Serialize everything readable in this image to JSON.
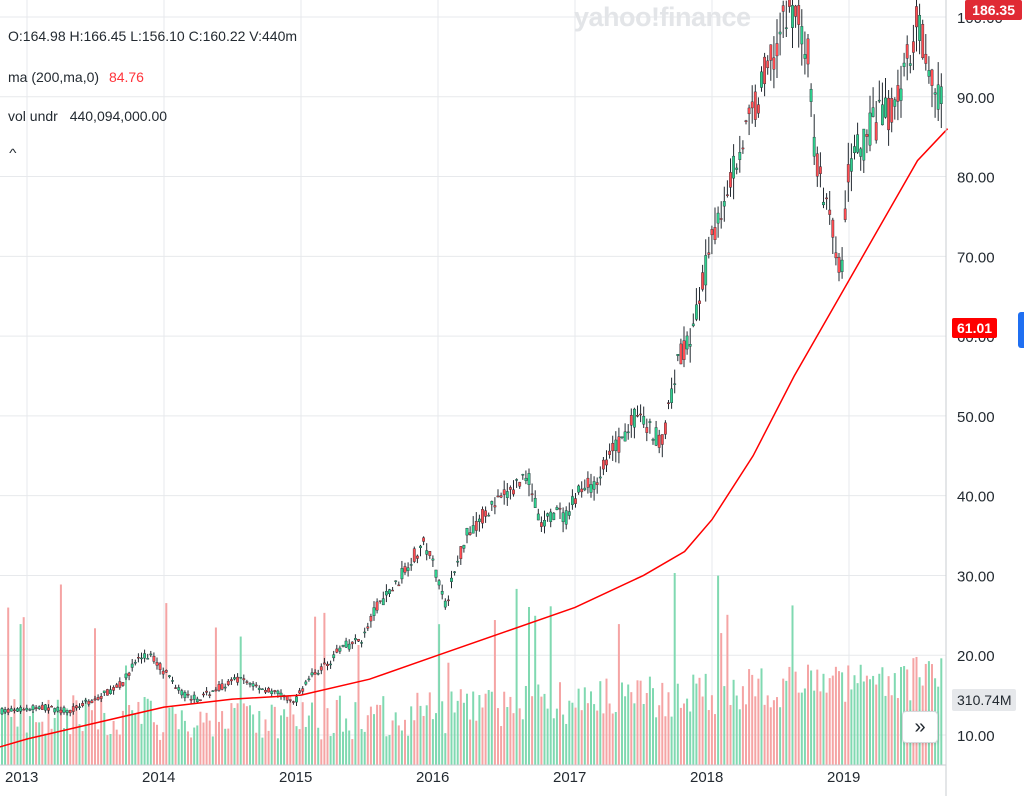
{
  "header": {
    "ohlcv": "O:164.98   H:166.45   L:156.10   C:160.22   V:440m",
    "ma_label": "ma (200,ma,0)",
    "ma_value": "84.76",
    "vol_label": "vol undr",
    "vol_value": "440,094,000.00",
    "collapse_icon": "chevron-up-icon"
  },
  "logo": "yahoo!finance",
  "price_tag": "186.35",
  "ma_tag": "61.01",
  "volume_tag": "310.74M",
  "forward_button_icon": "double-chevron-right-icon",
  "colors": {
    "up": "#2fcf8e",
    "down": "#ff4d52",
    "ma": "#ff0000",
    "grid": "#e7e9ec",
    "price_tag_bg": "#e02a34",
    "volume_up": "#80d9b1",
    "volume_down": "#f5a4a4"
  },
  "chart_data": {
    "type": "candlestick",
    "title": "",
    "xlabel": "",
    "ylabel": "",
    "ylim": [
      7,
      103
    ],
    "yticks": [
      "10.00",
      "20.00",
      "30.00",
      "40.00",
      "50.00",
      "60.00",
      "70.00",
      "80.00",
      "90.00",
      "100.00"
    ],
    "xticks": [
      "2013",
      "2014",
      "2015",
      "2016",
      "2017",
      "2018",
      "2019"
    ],
    "grid": true,
    "price_series": {
      "name": "price",
      "x": [
        2012.9,
        2013.1,
        2013.3,
        2013.5,
        2013.7,
        2013.8,
        2013.9,
        2014.0,
        2014.15,
        2014.25,
        2014.4,
        2014.55,
        2014.7,
        2014.85,
        2014.95,
        2015.05,
        2015.2,
        2015.3,
        2015.45,
        2015.55,
        2015.7,
        2015.8,
        2015.9,
        2016.0,
        2016.05,
        2016.1,
        2016.2,
        2016.35,
        2016.5,
        2016.65,
        2016.75,
        2016.85,
        2016.95,
        2017.0,
        2017.15,
        2017.3,
        2017.45,
        2017.55,
        2017.65,
        2017.75,
        2017.85,
        2017.95,
        2018.05,
        2018.15,
        2018.3,
        2018.45,
        2018.6,
        2018.7,
        2018.75,
        2018.85,
        2018.95,
        2019.0,
        2019.1,
        2019.2,
        2019.3,
        2019.4,
        2019.5,
        2019.6,
        2019.7
      ],
      "values": [
        13,
        13.5,
        13,
        14.5,
        16.5,
        19.5,
        20,
        18,
        15,
        14.5,
        16,
        17,
        16,
        15,
        14,
        17,
        19,
        21,
        22,
        26,
        29,
        32,
        34,
        30,
        26,
        29,
        35,
        38,
        40,
        43,
        36,
        38,
        37,
        40,
        42,
        46,
        50,
        48,
        47,
        57,
        60,
        68,
        75,
        81,
        88,
        96,
        102,
        95,
        83,
        75,
        68,
        82,
        84,
        87,
        88,
        92,
        101,
        92,
        88
      ]
    },
    "ma_series": {
      "name": "ma (200,ma,0)",
      "x": [
        2012.7,
        2013.0,
        2013.5,
        2014.0,
        2014.5,
        2015.0,
        2015.5,
        2016.0,
        2016.5,
        2017.0,
        2017.5,
        2017.8,
        2018.0,
        2018.3,
        2018.6,
        2018.9,
        2019.2,
        2019.5,
        2019.72
      ],
      "values": [
        8,
        9.5,
        11.5,
        13.5,
        14.5,
        15,
        17,
        20,
        23,
        26,
        30,
        33,
        37,
        45,
        55,
        64,
        73,
        82,
        86
      ]
    },
    "volume_series": {
      "name": "vol undr",
      "typical_range_M": [
        90,
        310
      ],
      "peak_M": 440
    }
  }
}
